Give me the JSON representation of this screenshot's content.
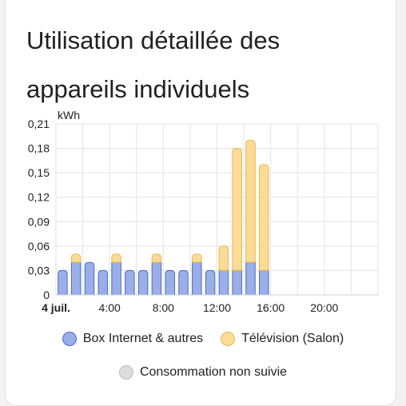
{
  "card": {
    "title": "Utilisation détaillée des appareils individuels"
  },
  "chart_data": {
    "type": "bar",
    "stacked": true,
    "ylabel": "kWh",
    "ylim": [
      0,
      0.21
    ],
    "yticks": [
      "0",
      "0,03",
      "0,06",
      "0,09",
      "0,12",
      "0,15",
      "0,18",
      "0,21"
    ],
    "x_tick_labels": [
      "4 juil.",
      "4:00",
      "8:00",
      "12:00",
      "16:00",
      "20:00"
    ],
    "x_hours": [
      "0:00",
      "1:00",
      "2:00",
      "3:00",
      "4:00",
      "5:00",
      "6:00",
      "7:00",
      "8:00",
      "9:00",
      "10:00",
      "11:00",
      "12:00",
      "13:00",
      "14:00",
      "15:00"
    ],
    "grid": true,
    "legend_position": "bottom",
    "series": [
      {
        "name": "Box Internet & autres",
        "color": "#9aaee8",
        "stroke": "#4a6cc8",
        "values": [
          0.03,
          0.04,
          0.04,
          0.03,
          0.04,
          0.03,
          0.03,
          0.04,
          0.03,
          0.03,
          0.04,
          0.03,
          0.03,
          0.03,
          0.04,
          0.03
        ]
      },
      {
        "name": "Télévision (Salon)",
        "color": "#fbdb96",
        "stroke": "#e9b84a",
        "values": [
          0,
          0.01,
          0,
          0,
          0.01,
          0,
          0,
          0.01,
          0,
          0,
          0.01,
          0,
          0.03,
          0.15,
          0.15,
          0.13
        ]
      }
    ],
    "extra_legend": {
      "name": "Consommation non suivie",
      "color": "#dcdcdc",
      "stroke": "#bdbdbd"
    }
  }
}
